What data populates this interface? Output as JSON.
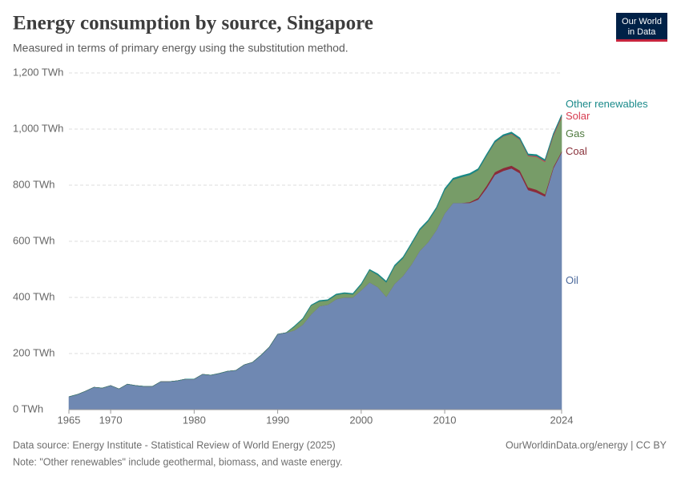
{
  "chart_data": {
    "type": "stacked-area",
    "title": "Energy consumption by source, Singapore",
    "subtitle": "Measured in terms of primary energy using the substitution method.",
    "x": [
      1965,
      1966,
      1967,
      1968,
      1969,
      1970,
      1971,
      1972,
      1973,
      1974,
      1975,
      1976,
      1977,
      1978,
      1979,
      1980,
      1981,
      1982,
      1983,
      1984,
      1985,
      1986,
      1987,
      1988,
      1989,
      1990,
      1991,
      1992,
      1993,
      1994,
      1995,
      1996,
      1997,
      1998,
      1999,
      2000,
      2001,
      2002,
      2003,
      2004,
      2005,
      2006,
      2007,
      2008,
      2009,
      2010,
      2011,
      2012,
      2013,
      2014,
      2015,
      2016,
      2017,
      2018,
      2019,
      2020,
      2021,
      2022,
      2023,
      2024
    ],
    "xlim": [
      1965,
      2024
    ],
    "xticks": [
      1965,
      1970,
      1980,
      1990,
      2000,
      2010,
      2024
    ],
    "ylim": [
      0,
      1200
    ],
    "yticks": [
      {
        "value": 0,
        "label": "0 TWh"
      },
      {
        "value": 200,
        "label": "200 TWh"
      },
      {
        "value": 400,
        "label": "400 TWh"
      },
      {
        "value": 600,
        "label": "600 TWh"
      },
      {
        "value": 800,
        "label": "800 TWh"
      },
      {
        "value": 1000,
        "label": "1,000 TWh"
      },
      {
        "value": 1200,
        "label": "1,200 TWh"
      }
    ],
    "grid": true,
    "series": [
      {
        "name": "Oil",
        "color": "#6f88b2",
        "label_color": "#4c6a9c",
        "values": [
          46,
          54,
          66,
          80,
          77,
          86,
          74,
          91,
          86,
          83,
          83,
          100,
          100,
          103,
          109,
          109,
          126,
          123,
          129,
          137,
          140,
          160,
          169,
          194,
          223,
          269,
          274,
          283,
          303,
          340,
          369,
          374,
          394,
          400,
          400,
          426,
          454,
          437,
          403,
          449,
          477,
          517,
          566,
          597,
          640,
          700,
          737,
          737,
          737,
          749,
          789,
          837,
          851,
          860,
          843,
          783,
          774,
          760,
          860,
          917
        ]
      },
      {
        "name": "Coal",
        "color": "#8b2c3a",
        "label_color": "#883039",
        "values": [
          0,
          0,
          0,
          0,
          0,
          0,
          0,
          0,
          0,
          0,
          0,
          0,
          0,
          0,
          0,
          0,
          0,
          0,
          0,
          0,
          0,
          0,
          0,
          0,
          0,
          0,
          0,
          0,
          0,
          0,
          0,
          0,
          0,
          0,
          0,
          0,
          0,
          0,
          0,
          0,
          0,
          0,
          0,
          0,
          0,
          0,
          0,
          0,
          3,
          6,
          9,
          10,
          10,
          10,
          10,
          10,
          10,
          8,
          5,
          4
        ]
      },
      {
        "name": "Gas",
        "color": "#779c68",
        "label_color": "#4f7a3f",
        "values": [
          0,
          0,
          0,
          0,
          0,
          0,
          0,
          0,
          0,
          0,
          0,
          0,
          0,
          0,
          0,
          0,
          0,
          0,
          0,
          0,
          0,
          0,
          0,
          0,
          0,
          0,
          0,
          13,
          20,
          31,
          17,
          15,
          15,
          14,
          11,
          20,
          43,
          43,
          51,
          62,
          63,
          72,
          74,
          74,
          77,
          83,
          83,
          92,
          97,
          99,
          106,
          105,
          113,
          113,
          109,
          111,
          117,
          115,
          110,
          121
        ]
      },
      {
        "name": "Solar",
        "color": "#d73c50",
        "label_color": "#d73c50",
        "values": [
          0,
          0,
          0,
          0,
          0,
          0,
          0,
          0,
          0,
          0,
          0,
          0,
          0,
          0,
          0,
          0,
          0,
          0,
          0,
          0,
          0,
          0,
          0,
          0,
          0,
          0,
          0,
          0,
          0,
          0,
          0,
          0,
          0,
          0,
          0,
          0,
          0,
          0,
          0,
          0,
          0,
          0,
          0,
          0,
          0,
          0,
          0,
          0,
          0,
          0,
          0.5,
          1,
          1,
          1.5,
          2,
          2.5,
          3,
          3.5,
          4,
          4.5
        ]
      },
      {
        "name": "Other renewables",
        "color": "#178a85",
        "label_color": "#1a8a8a",
        "values": [
          0,
          0,
          0,
          0,
          0,
          0,
          0,
          0,
          0,
          0,
          0,
          0,
          0,
          0,
          0,
          0,
          0,
          0,
          0,
          0,
          0,
          0,
          0,
          0,
          0,
          0,
          0,
          2,
          2,
          2,
          3,
          3,
          3,
          3,
          3,
          3,
          3,
          4,
          4,
          4,
          4,
          4,
          4,
          4,
          4,
          5,
          5,
          5,
          5,
          5,
          5,
          5,
          5,
          5,
          5,
          5,
          5,
          5,
          5,
          5
        ]
      }
    ],
    "source": "Data source: Energy Institute - Statistical Review of World Energy (2025)",
    "credit": "OurWorldinData.org/energy | CC BY",
    "note": "Note: \"Other renewables\" include geothermal, biomass, and waste energy.",
    "logo": [
      "Our World",
      "in Data"
    ]
  }
}
